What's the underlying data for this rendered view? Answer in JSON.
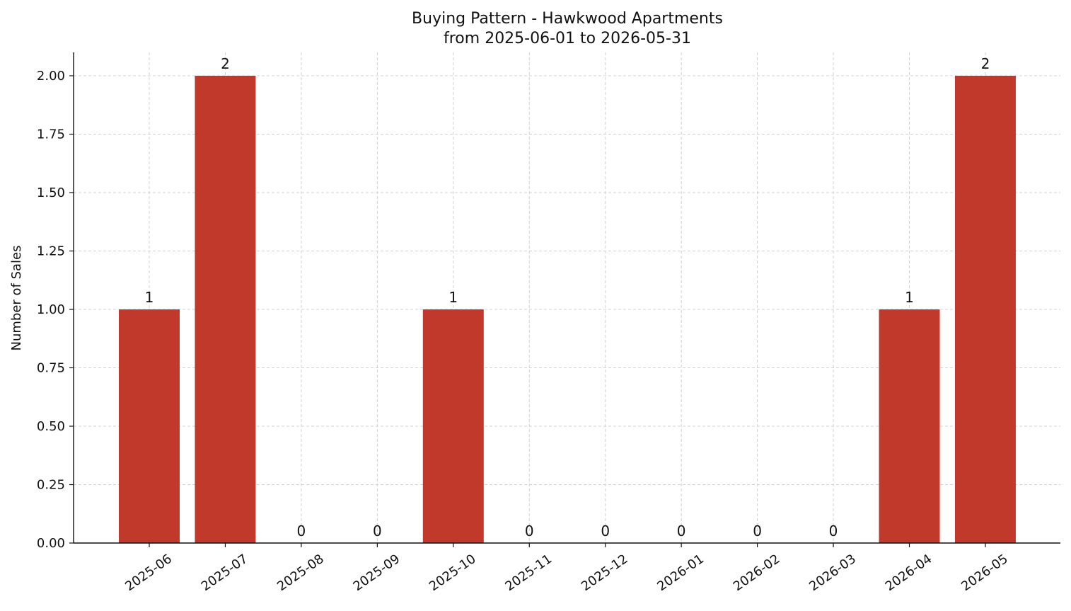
{
  "chart_data": {
    "type": "bar",
    "title": "Buying Pattern - Hawkwood Apartments",
    "subtitle": "from 2025-06-01 to 2026-05-31",
    "xlabel": "",
    "ylabel": "Number of Sales",
    "categories": [
      "2025-06",
      "2025-07",
      "2025-08",
      "2025-09",
      "2025-10",
      "2025-11",
      "2025-12",
      "2026-01",
      "2026-02",
      "2026-03",
      "2026-04",
      "2026-05"
    ],
    "values": [
      1,
      2,
      0,
      0,
      1,
      0,
      0,
      0,
      0,
      0,
      1,
      2
    ],
    "data_labels": [
      "1",
      "2",
      "0",
      "0",
      "1",
      "0",
      "0",
      "0",
      "0",
      "0",
      "1",
      "2"
    ],
    "ylim": [
      0,
      2.1
    ],
    "y_ticks": [
      0,
      0.25,
      0.5,
      0.75,
      1.0,
      1.25,
      1.5,
      1.75,
      2.0
    ],
    "y_tick_labels": [
      "0.00",
      "0.25",
      "0.50",
      "0.75",
      "1.00",
      "1.25",
      "1.50",
      "1.75",
      "2.00"
    ],
    "x_tick_rotation_deg": 35,
    "grid": true,
    "legend": "none",
    "bar_color": "#c0392b",
    "grid_color": "#d0d0d0",
    "axis_color": "#111111"
  }
}
